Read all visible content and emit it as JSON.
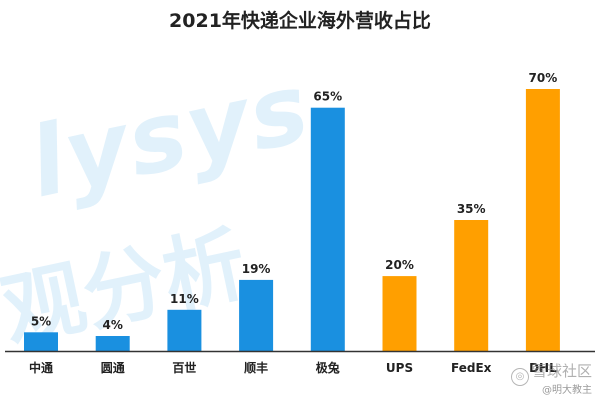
{
  "chart_data": {
    "type": "bar",
    "title": "2021年快递企业海外营收占比",
    "categories": [
      "中通",
      "圆通",
      "百世",
      "顺丰",
      "极兔",
      "UPS",
      "FedEx",
      "DHL"
    ],
    "values": [
      5,
      4,
      11,
      19,
      65,
      20,
      35,
      70
    ],
    "data_labels": [
      "5%",
      "4%",
      "11%",
      "19%",
      "65%",
      "20%",
      "35%",
      "70%"
    ],
    "bar_colors": [
      "#1a90e0",
      "#1a90e0",
      "#1a90e0",
      "#1a90e0",
      "#1a90e0",
      "#ff9f00",
      "#ff9f00",
      "#ff9f00"
    ],
    "xlabel": "",
    "ylabel": "",
    "ylim": [
      0,
      70
    ],
    "grid": false,
    "legend": "none"
  },
  "watermark": {
    "text_latin": "lysys",
    "text_cjk": "观分析",
    "footer_text": "雪球社区",
    "footer_sub": "@明大教主"
  }
}
